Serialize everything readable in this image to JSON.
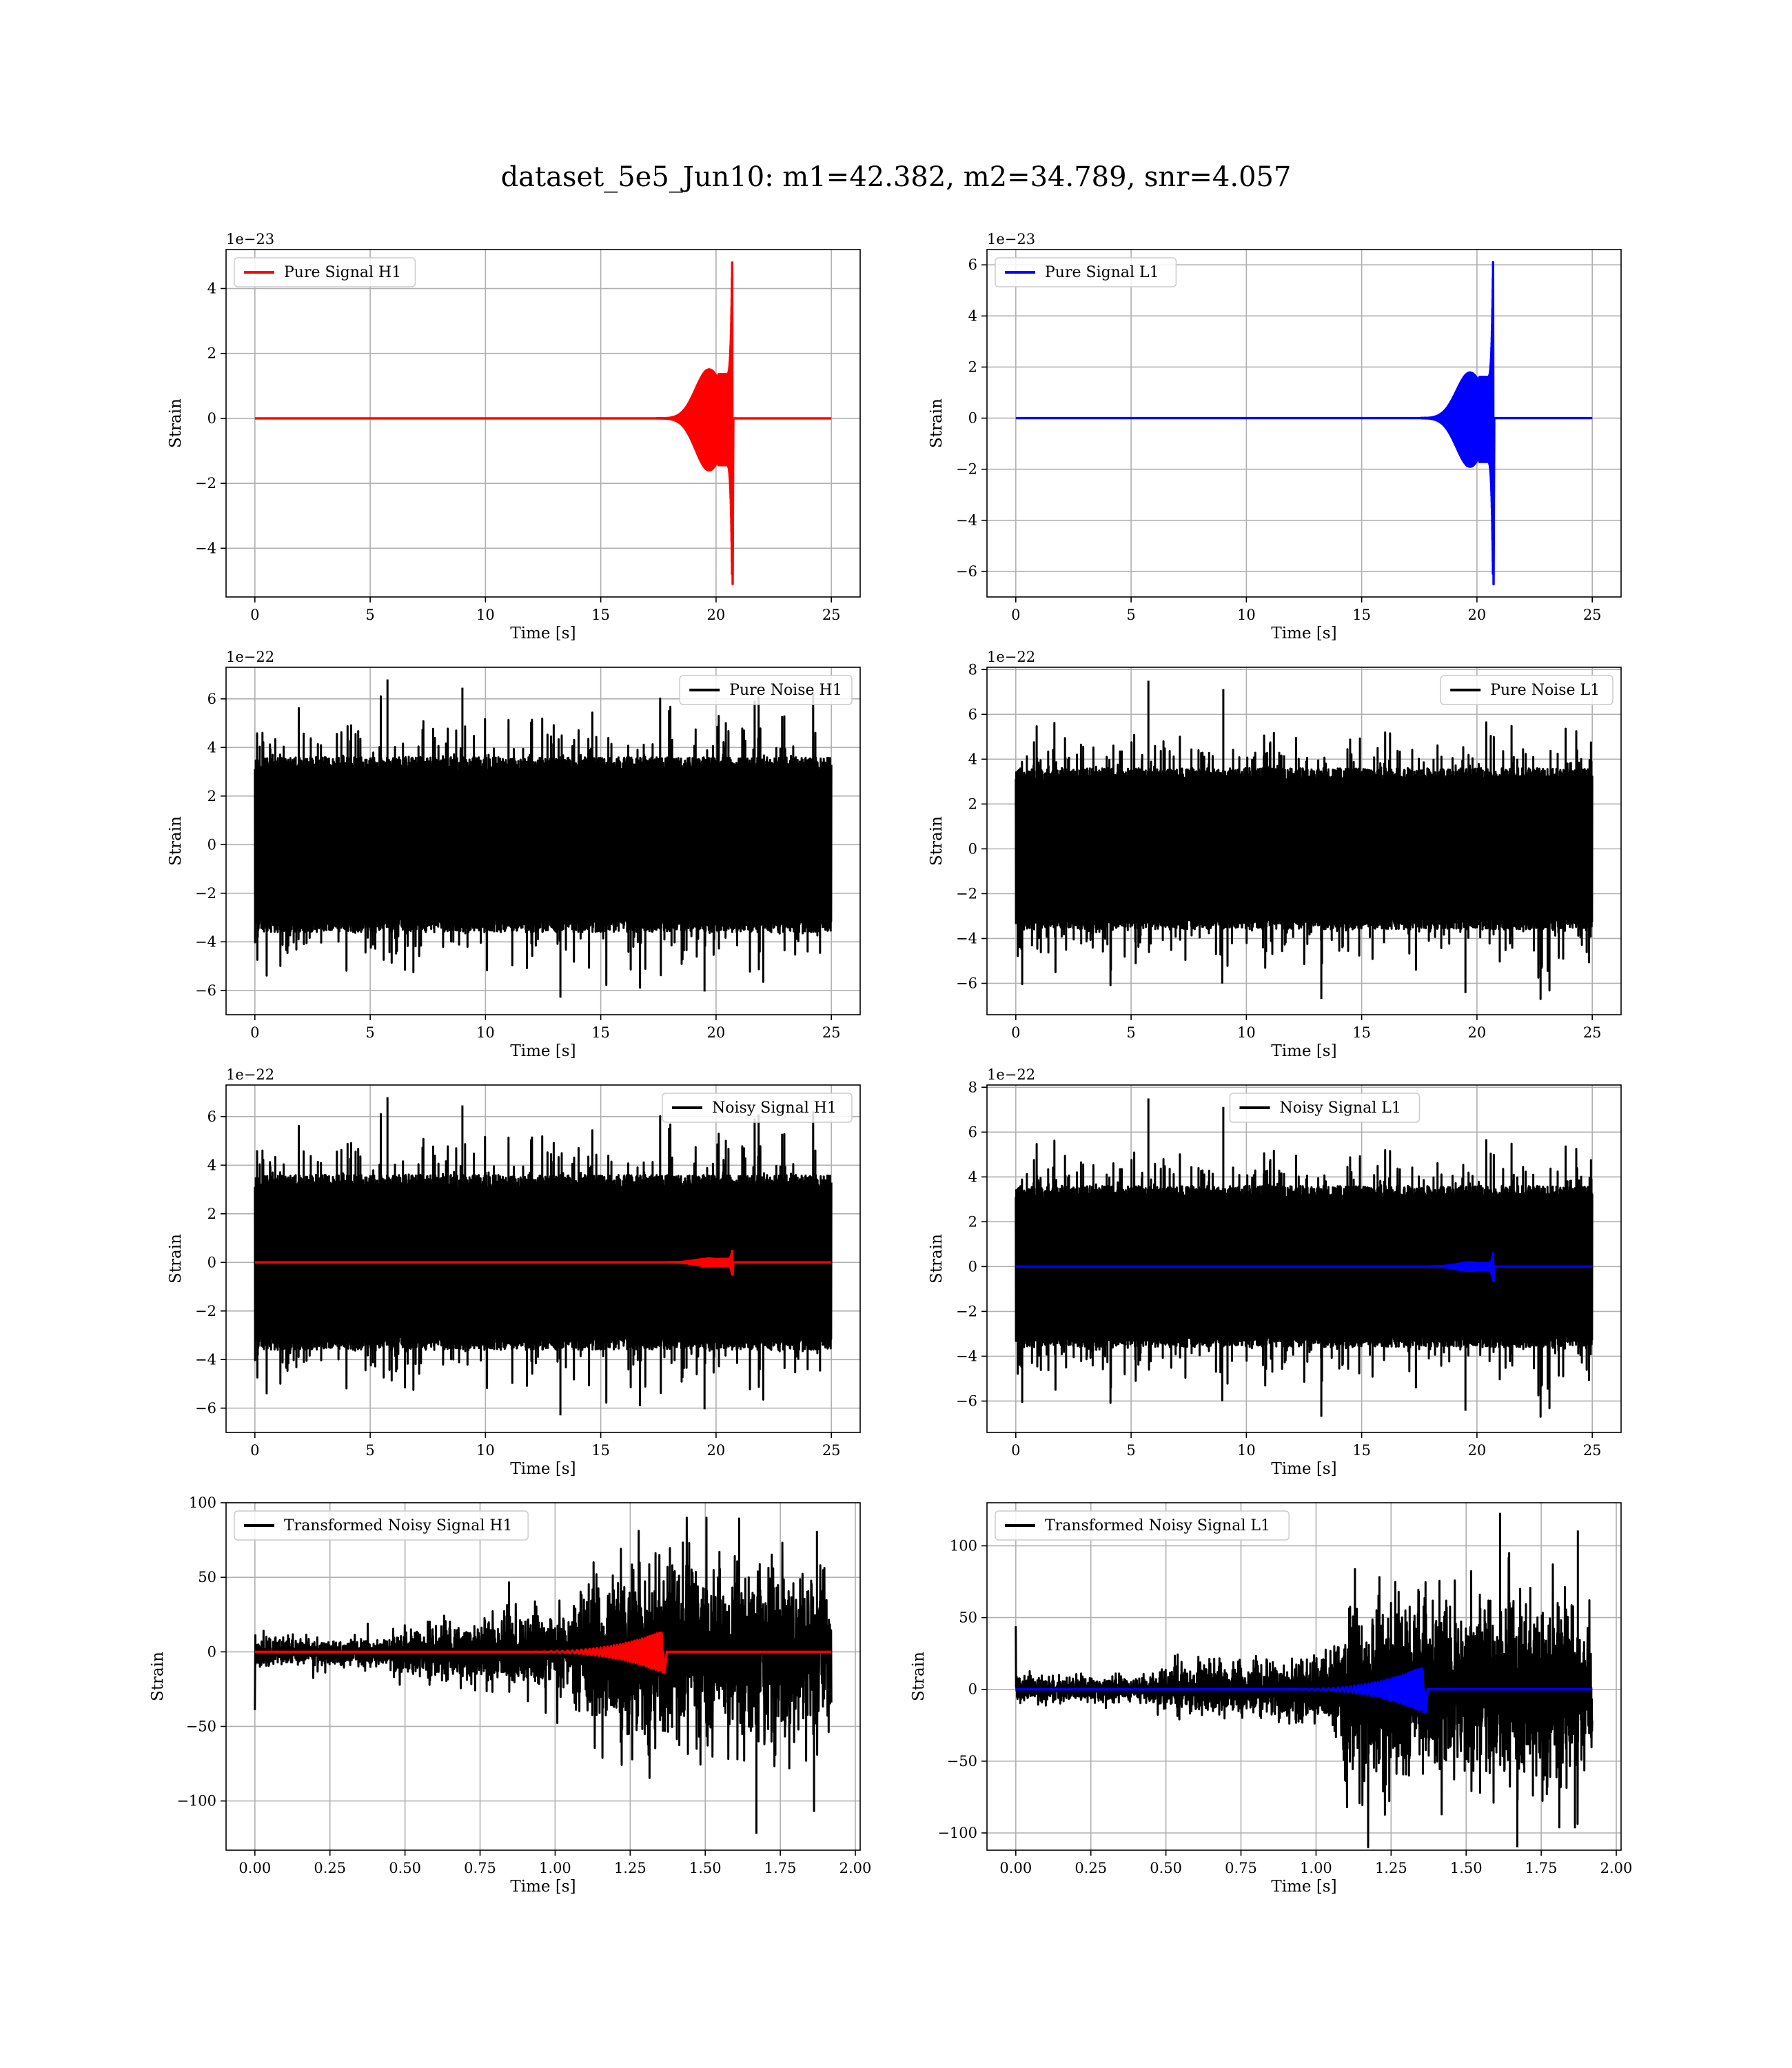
{
  "figure": {
    "title": "dataset_5e5_Jun10: m1=42.382, m2=34.789, snr=4.057"
  },
  "chart_data": [
    {
      "type": "line",
      "panel": "pure-signal-h1",
      "xlabel": "Time [s]",
      "ylabel": "Strain",
      "offset_text": "1e−23",
      "xlim": [
        -1.25,
        26.25
      ],
      "ylim": [
        -5.5,
        5.2
      ],
      "xticks": [
        0,
        5,
        10,
        15,
        20,
        25
      ],
      "xtick_labels": [
        "0",
        "5",
        "10",
        "15",
        "20",
        "25"
      ],
      "yticks": [
        -4,
        -2,
        0,
        2,
        4
      ],
      "ytick_labels": [
        "−4",
        "−2",
        "0",
        "2",
        "4"
      ],
      "grid": true,
      "legend_loc": "upper-left",
      "series": [
        {
          "name": "Pure Signal H1",
          "color": "#ff0000",
          "kind": "chirp",
          "x_range": [
            0,
            25
          ],
          "chirp_start": 15,
          "merger_time": 20.7,
          "peak_pos": 4.8,
          "peak_neg": -5.1,
          "plateau": 1.6
        }
      ]
    },
    {
      "type": "line",
      "panel": "pure-signal-l1",
      "xlabel": "Time [s]",
      "ylabel": "Strain",
      "offset_text": "1e−23",
      "xlim": [
        -1.25,
        26.25
      ],
      "ylim": [
        -7.0,
        6.6
      ],
      "xticks": [
        0,
        5,
        10,
        15,
        20,
        25
      ],
      "xtick_labels": [
        "0",
        "5",
        "10",
        "15",
        "20",
        "25"
      ],
      "yticks": [
        -6,
        -4,
        -2,
        0,
        2,
        4,
        6
      ],
      "ytick_labels": [
        "−6",
        "−4",
        "−2",
        "0",
        "2",
        "4",
        "6"
      ],
      "grid": true,
      "legend_loc": "upper-left",
      "series": [
        {
          "name": "Pure Signal L1",
          "color": "#0000ff",
          "kind": "chirp",
          "x_range": [
            0,
            25
          ],
          "chirp_start": 15,
          "merger_time": 20.7,
          "peak_pos": 6.1,
          "peak_neg": -6.5,
          "plateau": 1.9
        }
      ]
    },
    {
      "type": "line",
      "panel": "pure-noise-h1",
      "xlabel": "Time [s]",
      "ylabel": "Strain",
      "offset_text": "1e−22",
      "xlim": [
        -1.25,
        26.25
      ],
      "ylim": [
        -7.0,
        7.3
      ],
      "xticks": [
        0,
        5,
        10,
        15,
        20,
        25
      ],
      "xtick_labels": [
        "0",
        "5",
        "10",
        "15",
        "20",
        "25"
      ],
      "yticks": [
        -6,
        -4,
        -2,
        0,
        2,
        4,
        6
      ],
      "ytick_labels": [
        "−6",
        "−4",
        "−2",
        "0",
        "2",
        "4",
        "6"
      ],
      "grid": true,
      "legend_loc": "upper-right",
      "series": [
        {
          "name": "Pure Noise H1",
          "color": "#000000",
          "kind": "noise",
          "x_range": [
            0,
            25
          ],
          "band": 3.6,
          "spike_max": 6.8,
          "spike_min": -6.3,
          "seed": 11
        }
      ]
    },
    {
      "type": "line",
      "panel": "pure-noise-l1",
      "xlabel": "Time [s]",
      "ylabel": "Strain",
      "offset_text": "1e−22",
      "xlim": [
        -1.25,
        26.25
      ],
      "ylim": [
        -7.4,
        8.1
      ],
      "xticks": [
        0,
        5,
        10,
        15,
        20,
        25
      ],
      "xtick_labels": [
        "0",
        "5",
        "10",
        "15",
        "20",
        "25"
      ],
      "yticks": [
        -6,
        -4,
        -2,
        0,
        2,
        4,
        6,
        8
      ],
      "ytick_labels": [
        "−6",
        "−4",
        "−2",
        "0",
        "2",
        "4",
        "6",
        "8"
      ],
      "grid": true,
      "legend_loc": "upper-right",
      "series": [
        {
          "name": "Pure Noise L1",
          "color": "#000000",
          "kind": "noise",
          "x_range": [
            0,
            25
          ],
          "band": 3.6,
          "spike_max": 7.5,
          "spike_min": -6.7,
          "seed": 23
        }
      ]
    },
    {
      "type": "line",
      "panel": "noisy-signal-h1",
      "xlabel": "Time [s]",
      "ylabel": "Strain",
      "offset_text": "1e−22",
      "xlim": [
        -1.25,
        26.25
      ],
      "ylim": [
        -7.0,
        7.3
      ],
      "xticks": [
        0,
        5,
        10,
        15,
        20,
        25
      ],
      "xtick_labels": [
        "0",
        "5",
        "10",
        "15",
        "20",
        "25"
      ],
      "yticks": [
        -6,
        -4,
        -2,
        0,
        2,
        4,
        6
      ],
      "ytick_labels": [
        "−6",
        "−4",
        "−2",
        "0",
        "2",
        "4",
        "6"
      ],
      "grid": true,
      "legend_loc": "upper-right",
      "series": [
        {
          "name": "Noisy Signal H1",
          "color": "#000000",
          "kind": "noise",
          "x_range": [
            0,
            25
          ],
          "band": 3.6,
          "spike_max": 6.8,
          "spike_min": -6.3,
          "seed": 11
        },
        {
          "color": "#ff0000",
          "kind": "chirp",
          "x_range": [
            0,
            25
          ],
          "chirp_start": 15,
          "merger_time": 20.7,
          "peak_pos": 0.48,
          "peak_neg": -0.51,
          "plateau": 0.16
        }
      ]
    },
    {
      "type": "line",
      "panel": "noisy-signal-l1",
      "xlabel": "Time [s]",
      "ylabel": "Strain",
      "offset_text": "1e−22",
      "xlim": [
        -1.25,
        26.25
      ],
      "ylim": [
        -7.4,
        8.1
      ],
      "xticks": [
        0,
        5,
        10,
        15,
        20,
        25
      ],
      "xtick_labels": [
        "0",
        "5",
        "10",
        "15",
        "20",
        "25"
      ],
      "yticks": [
        -6,
        -4,
        -2,
        0,
        2,
        4,
        6,
        8
      ],
      "ytick_labels": [
        "−6",
        "−4",
        "−2",
        "0",
        "2",
        "4",
        "6",
        "8"
      ],
      "grid": true,
      "legend_loc": "upper-center",
      "series": [
        {
          "name": "Noisy Signal L1",
          "color": "#000000",
          "kind": "noise",
          "x_range": [
            0,
            25
          ],
          "band": 3.6,
          "spike_max": 7.5,
          "spike_min": -6.7,
          "seed": 23
        },
        {
          "color": "#0000ff",
          "kind": "chirp",
          "x_range": [
            0,
            25
          ],
          "chirp_start": 15,
          "merger_time": 20.7,
          "peak_pos": 0.61,
          "peak_neg": -0.65,
          "plateau": 0.19
        }
      ]
    },
    {
      "type": "line",
      "panel": "transformed-noisy-signal-h1",
      "xlabel": "Time [s]",
      "ylabel": "Strain",
      "offset_text": "",
      "xlim": [
        -0.096,
        2.016
      ],
      "ylim": [
        -133,
        100
      ],
      "xticks": [
        0,
        0.25,
        0.5,
        0.75,
        1.0,
        1.25,
        1.5,
        1.75,
        2.0
      ],
      "xtick_labels": [
        "0.00",
        "0.25",
        "0.50",
        "0.75",
        "1.00",
        "1.25",
        "1.50",
        "1.75",
        "2.00"
      ],
      "yticks": [
        -100,
        -50,
        0,
        50,
        100
      ],
      "ytick_labels": [
        "−100",
        "−50",
        "0",
        "50",
        "100"
      ],
      "grid": true,
      "legend_loc": "upper-left",
      "series": [
        {
          "name": "Transformed Noisy Signal H1",
          "color": "#000000",
          "kind": "tnoise",
          "x_range": [
            0,
            1.92
          ],
          "first_value": -39,
          "breaks": [
            0.45,
            1.05,
            1.12
          ],
          "amps": [
            6,
            10,
            18,
            40
          ],
          "spike_max": 90,
          "spike_min": -122,
          "seed": 37
        },
        {
          "color": "#ff0000",
          "kind": "tchirp",
          "x_range": [
            0,
            1.92
          ],
          "chirp_start": 0.85,
          "merger_time": 1.36,
          "peak": 14
        }
      ]
    },
    {
      "type": "line",
      "panel": "transformed-noisy-signal-l1",
      "xlabel": "Time [s]",
      "ylabel": "Strain",
      "offset_text": "",
      "xlim": [
        -0.096,
        2.016
      ],
      "ylim": [
        -112,
        130
      ],
      "xticks": [
        0,
        0.25,
        0.5,
        0.75,
        1.0,
        1.25,
        1.5,
        1.75,
        2.0
      ],
      "xtick_labels": [
        "0.00",
        "0.25",
        "0.50",
        "0.75",
        "1.00",
        "1.25",
        "1.50",
        "1.75",
        "2.00"
      ],
      "yticks": [
        -100,
        -50,
        0,
        50,
        100
      ],
      "ytick_labels": [
        "−100",
        "−50",
        "0",
        "50",
        "100"
      ],
      "grid": true,
      "legend_loc": "upper-left",
      "series": [
        {
          "name": "Transformed Noisy Signal L1",
          "color": "#000000",
          "kind": "tnoise",
          "x_range": [
            0,
            1.92
          ],
          "first_value": 44,
          "breaks": [
            0.45,
            1.05,
            1.12
          ],
          "amps": [
            6,
            9,
            16,
            42
          ],
          "spike_max": 123,
          "spike_min": -110,
          "seed": 53
        },
        {
          "color": "#0000ff",
          "kind": "tchirp",
          "x_range": [
            0,
            1.92
          ],
          "chirp_start": 0.85,
          "merger_time": 1.36,
          "peak": 16
        }
      ]
    }
  ]
}
